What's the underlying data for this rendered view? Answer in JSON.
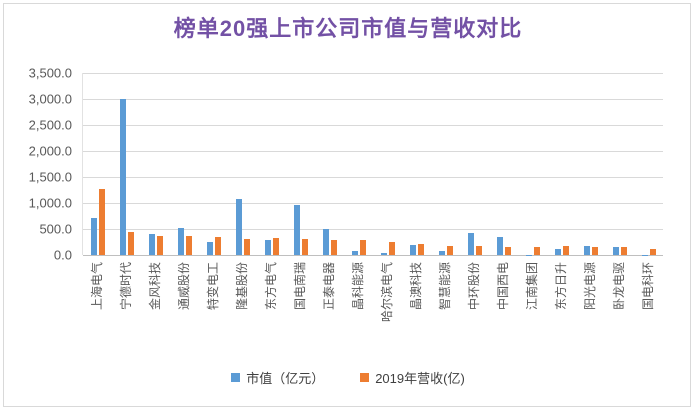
{
  "header": {
    "title": "榜单20强上市公司市值与营收对比",
    "title_color": "#7351a5"
  },
  "colors": {
    "market_cap_blue": "#5B9BD5",
    "revenue_orange": "#ED7D31",
    "axis_text": "#595959",
    "gridline": "#D9D9D9",
    "frame_border": "#D9D9D9"
  },
  "chart_data": {
    "type": "bar",
    "title": "榜单20强上市公司市值与营收对比",
    "categories": [
      "上海电气",
      "宁德时代",
      "金风科技",
      "通威股份",
      "特变电工",
      "隆基股份",
      "东方电气",
      "国电南瑞",
      "正泰电器",
      "晶科能源",
      "哈尔滨电气",
      "晶澳科技",
      "智慧能源",
      "中环股份",
      "中国西电",
      "江南集团",
      "东方日升",
      "阳光电源",
      "卧龙电驱",
      "国电科环"
    ],
    "series": [
      {
        "name": "市值（亿元）",
        "color": "#5B9BD5",
        "values": [
          720,
          3010,
          400,
          515,
          250,
          1075,
          290,
          955,
          510,
          75,
          45,
          185,
          80,
          420,
          355,
          10,
          110,
          165,
          150,
          8
        ]
      },
      {
        "name": "2019年营收(亿)",
        "color": "#ED7D31",
        "values": [
          1270,
          445,
          375,
          365,
          355,
          310,
          320,
          305,
          290,
          280,
          245,
          205,
          175,
          180,
          160,
          160,
          175,
          150,
          150,
          125
        ]
      }
    ],
    "xlabel": "",
    "ylabel": "",
    "ylim": [
      0,
      3500
    ],
    "ytick_step": 500,
    "ytick_labels": [
      "3,500.0",
      "3,000.0",
      "2,500.0",
      "2,000.0",
      "1,500.0",
      "1,000.0",
      "500.0",
      "0.0"
    ],
    "grid": true,
    "x_label_rotation": -90,
    "legend_position": "bottom"
  }
}
